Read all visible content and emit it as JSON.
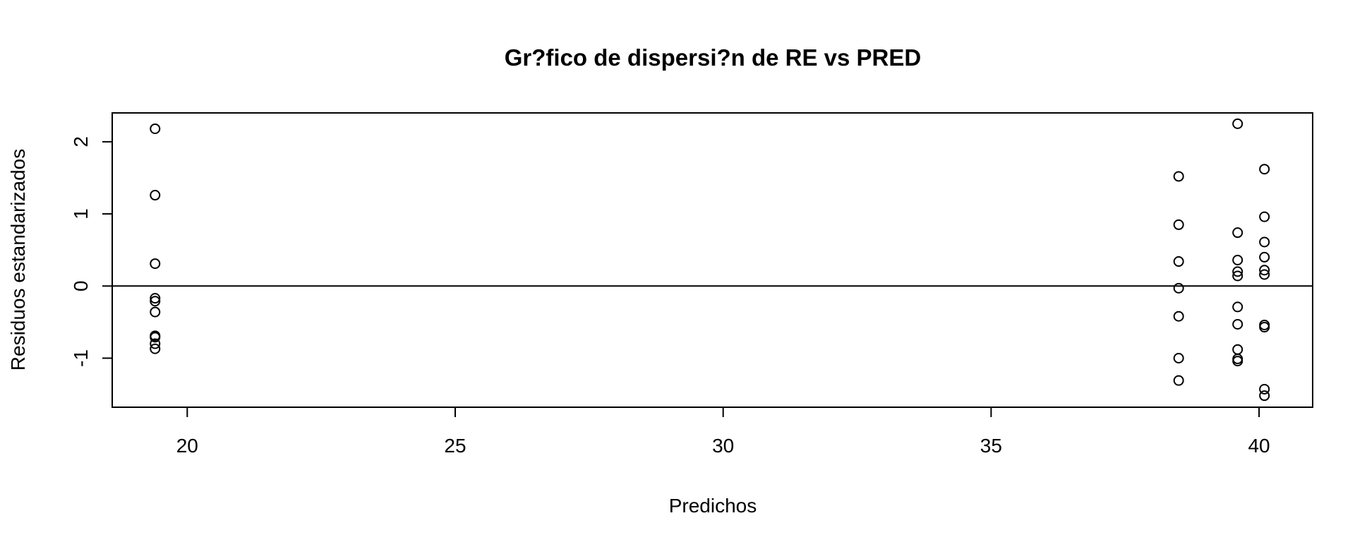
{
  "chart_data": {
    "type": "scatter",
    "title": "Gr?fico de dispersi?n de RE vs PRED",
    "xlabel": "Predichos",
    "ylabel": "Residuos estandarizados",
    "xlim": [
      18.6,
      41.0
    ],
    "ylim": [
      -1.68,
      2.4
    ],
    "xticks": [
      20,
      25,
      30,
      35,
      40
    ],
    "xtick_labels": [
      "20",
      "25",
      "30",
      "35",
      "40"
    ],
    "yticks": [
      -1,
      0,
      1,
      2
    ],
    "ytick_labels": [
      "-1",
      "0",
      "1",
      "2"
    ],
    "grid": false,
    "reference_line": {
      "y": 0
    },
    "colors": {
      "points": "#000000",
      "axes": "#000000",
      "background": "#ffffff"
    },
    "series": [
      {
        "marker": "open-circle",
        "points": [
          [
            19.4,
            2.18
          ],
          [
            19.4,
            1.26
          ],
          [
            19.4,
            0.31
          ],
          [
            19.4,
            -0.17
          ],
          [
            19.4,
            -0.21
          ],
          [
            19.4,
            -0.36
          ],
          [
            19.4,
            -0.69
          ],
          [
            19.4,
            -0.71
          ],
          [
            19.4,
            -0.8
          ],
          [
            19.4,
            -0.87
          ],
          [
            38.5,
            1.52
          ],
          [
            38.5,
            0.85
          ],
          [
            38.5,
            0.34
          ],
          [
            38.5,
            -0.03
          ],
          [
            38.5,
            -0.42
          ],
          [
            38.5,
            -1.0
          ],
          [
            38.5,
            -1.31
          ],
          [
            39.6,
            2.25
          ],
          [
            39.6,
            0.74
          ],
          [
            39.6,
            0.36
          ],
          [
            39.6,
            0.2
          ],
          [
            39.6,
            0.14
          ],
          [
            39.6,
            -0.29
          ],
          [
            39.6,
            -0.53
          ],
          [
            39.6,
            -0.88
          ],
          [
            39.6,
            -1.01
          ],
          [
            39.6,
            -1.04
          ],
          [
            40.1,
            1.62
          ],
          [
            40.1,
            0.96
          ],
          [
            40.1,
            0.61
          ],
          [
            40.1,
            0.4
          ],
          [
            40.1,
            0.22
          ],
          [
            40.1,
            0.16
          ],
          [
            40.1,
            -0.54
          ],
          [
            40.1,
            -0.57
          ],
          [
            40.1,
            -1.43
          ],
          [
            40.1,
            -1.52
          ]
        ]
      }
    ]
  }
}
